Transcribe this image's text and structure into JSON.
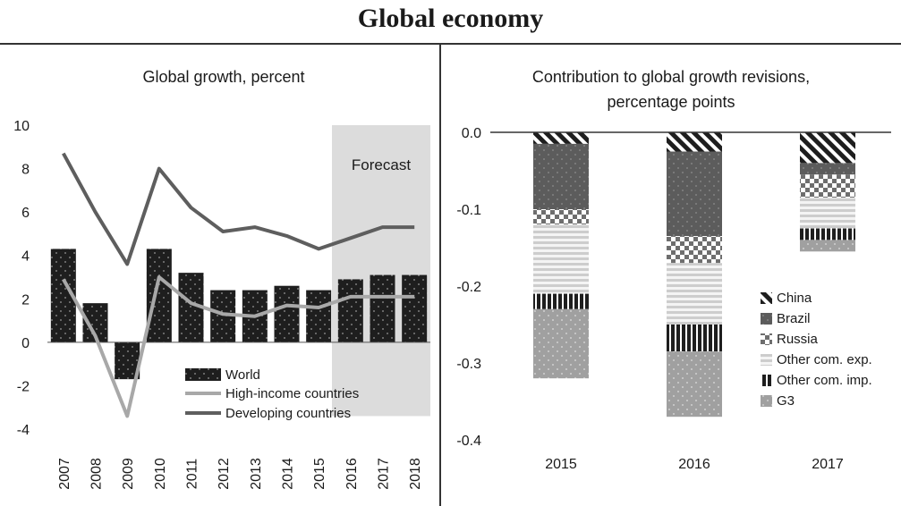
{
  "page": {
    "title": "Global economy"
  },
  "chart_data": [
    {
      "type": "bar",
      "title": "Global growth,  percent",
      "annotation": "Forecast",
      "forecast_start": "2016",
      "categories": [
        "2007",
        "2008",
        "2009",
        "2010",
        "2011",
        "2012",
        "2013",
        "2014",
        "2015",
        "2016",
        "2017",
        "2018"
      ],
      "ylim": [
        -4,
        10
      ],
      "yticks": [
        "10",
        "8",
        "6",
        "4",
        "2",
        "0",
        "-2",
        "-4"
      ],
      "series": [
        {
          "name": "World",
          "kind": "bar",
          "color": "#1e1e1e",
          "values": [
            4.3,
            1.8,
            -1.7,
            4.3,
            3.2,
            2.4,
            2.4,
            2.6,
            2.4,
            2.9,
            3.1,
            3.1
          ]
        },
        {
          "name": "High-income countries",
          "kind": "line",
          "color": "#a8a8a8",
          "values": [
            2.9,
            0.3,
            -3.4,
            3.0,
            1.8,
            1.3,
            1.2,
            1.7,
            1.6,
            2.1,
            2.1,
            2.1
          ]
        },
        {
          "name": "Developing countries",
          "kind": "line",
          "color": "#5e5e5e",
          "values": [
            8.7,
            6.0,
            3.6,
            8.0,
            6.2,
            5.1,
            5.3,
            4.9,
            4.3,
            4.8,
            5.3,
            5.3
          ]
        }
      ]
    },
    {
      "type": "bar",
      "stacked": true,
      "title_line1": "Contribution to global growth revisions,",
      "title_line2": "percentage points",
      "categories": [
        "2015",
        "2016",
        "2017"
      ],
      "ylim": [
        -0.4,
        0.0
      ],
      "yticks": [
        "0.0",
        "-0.1",
        "-0.2",
        "-0.3",
        "-0.4"
      ],
      "series": [
        {
          "name": "China",
          "color": "#1e1e1e",
          "values": [
            -0.015,
            -0.025,
            -0.04
          ]
        },
        {
          "name": "Brazil",
          "color": "#5c5c5c",
          "values": [
            -0.085,
            -0.11,
            -0.015
          ]
        },
        {
          "name": "Russia",
          "color": "#6e6e6e",
          "values": [
            -0.02,
            -0.035,
            -0.03
          ]
        },
        {
          "name": "Other com. exp.",
          "color": "#d0d0d0",
          "values": [
            -0.09,
            -0.08,
            -0.04
          ]
        },
        {
          "name": "Other com. imp.",
          "color": "#1e1e1e",
          "values": [
            -0.02,
            -0.035,
            -0.015
          ]
        },
        {
          "name": "G3",
          "color": "#999999",
          "values": [
            -0.09,
            -0.085,
            -0.015
          ]
        }
      ]
    }
  ]
}
